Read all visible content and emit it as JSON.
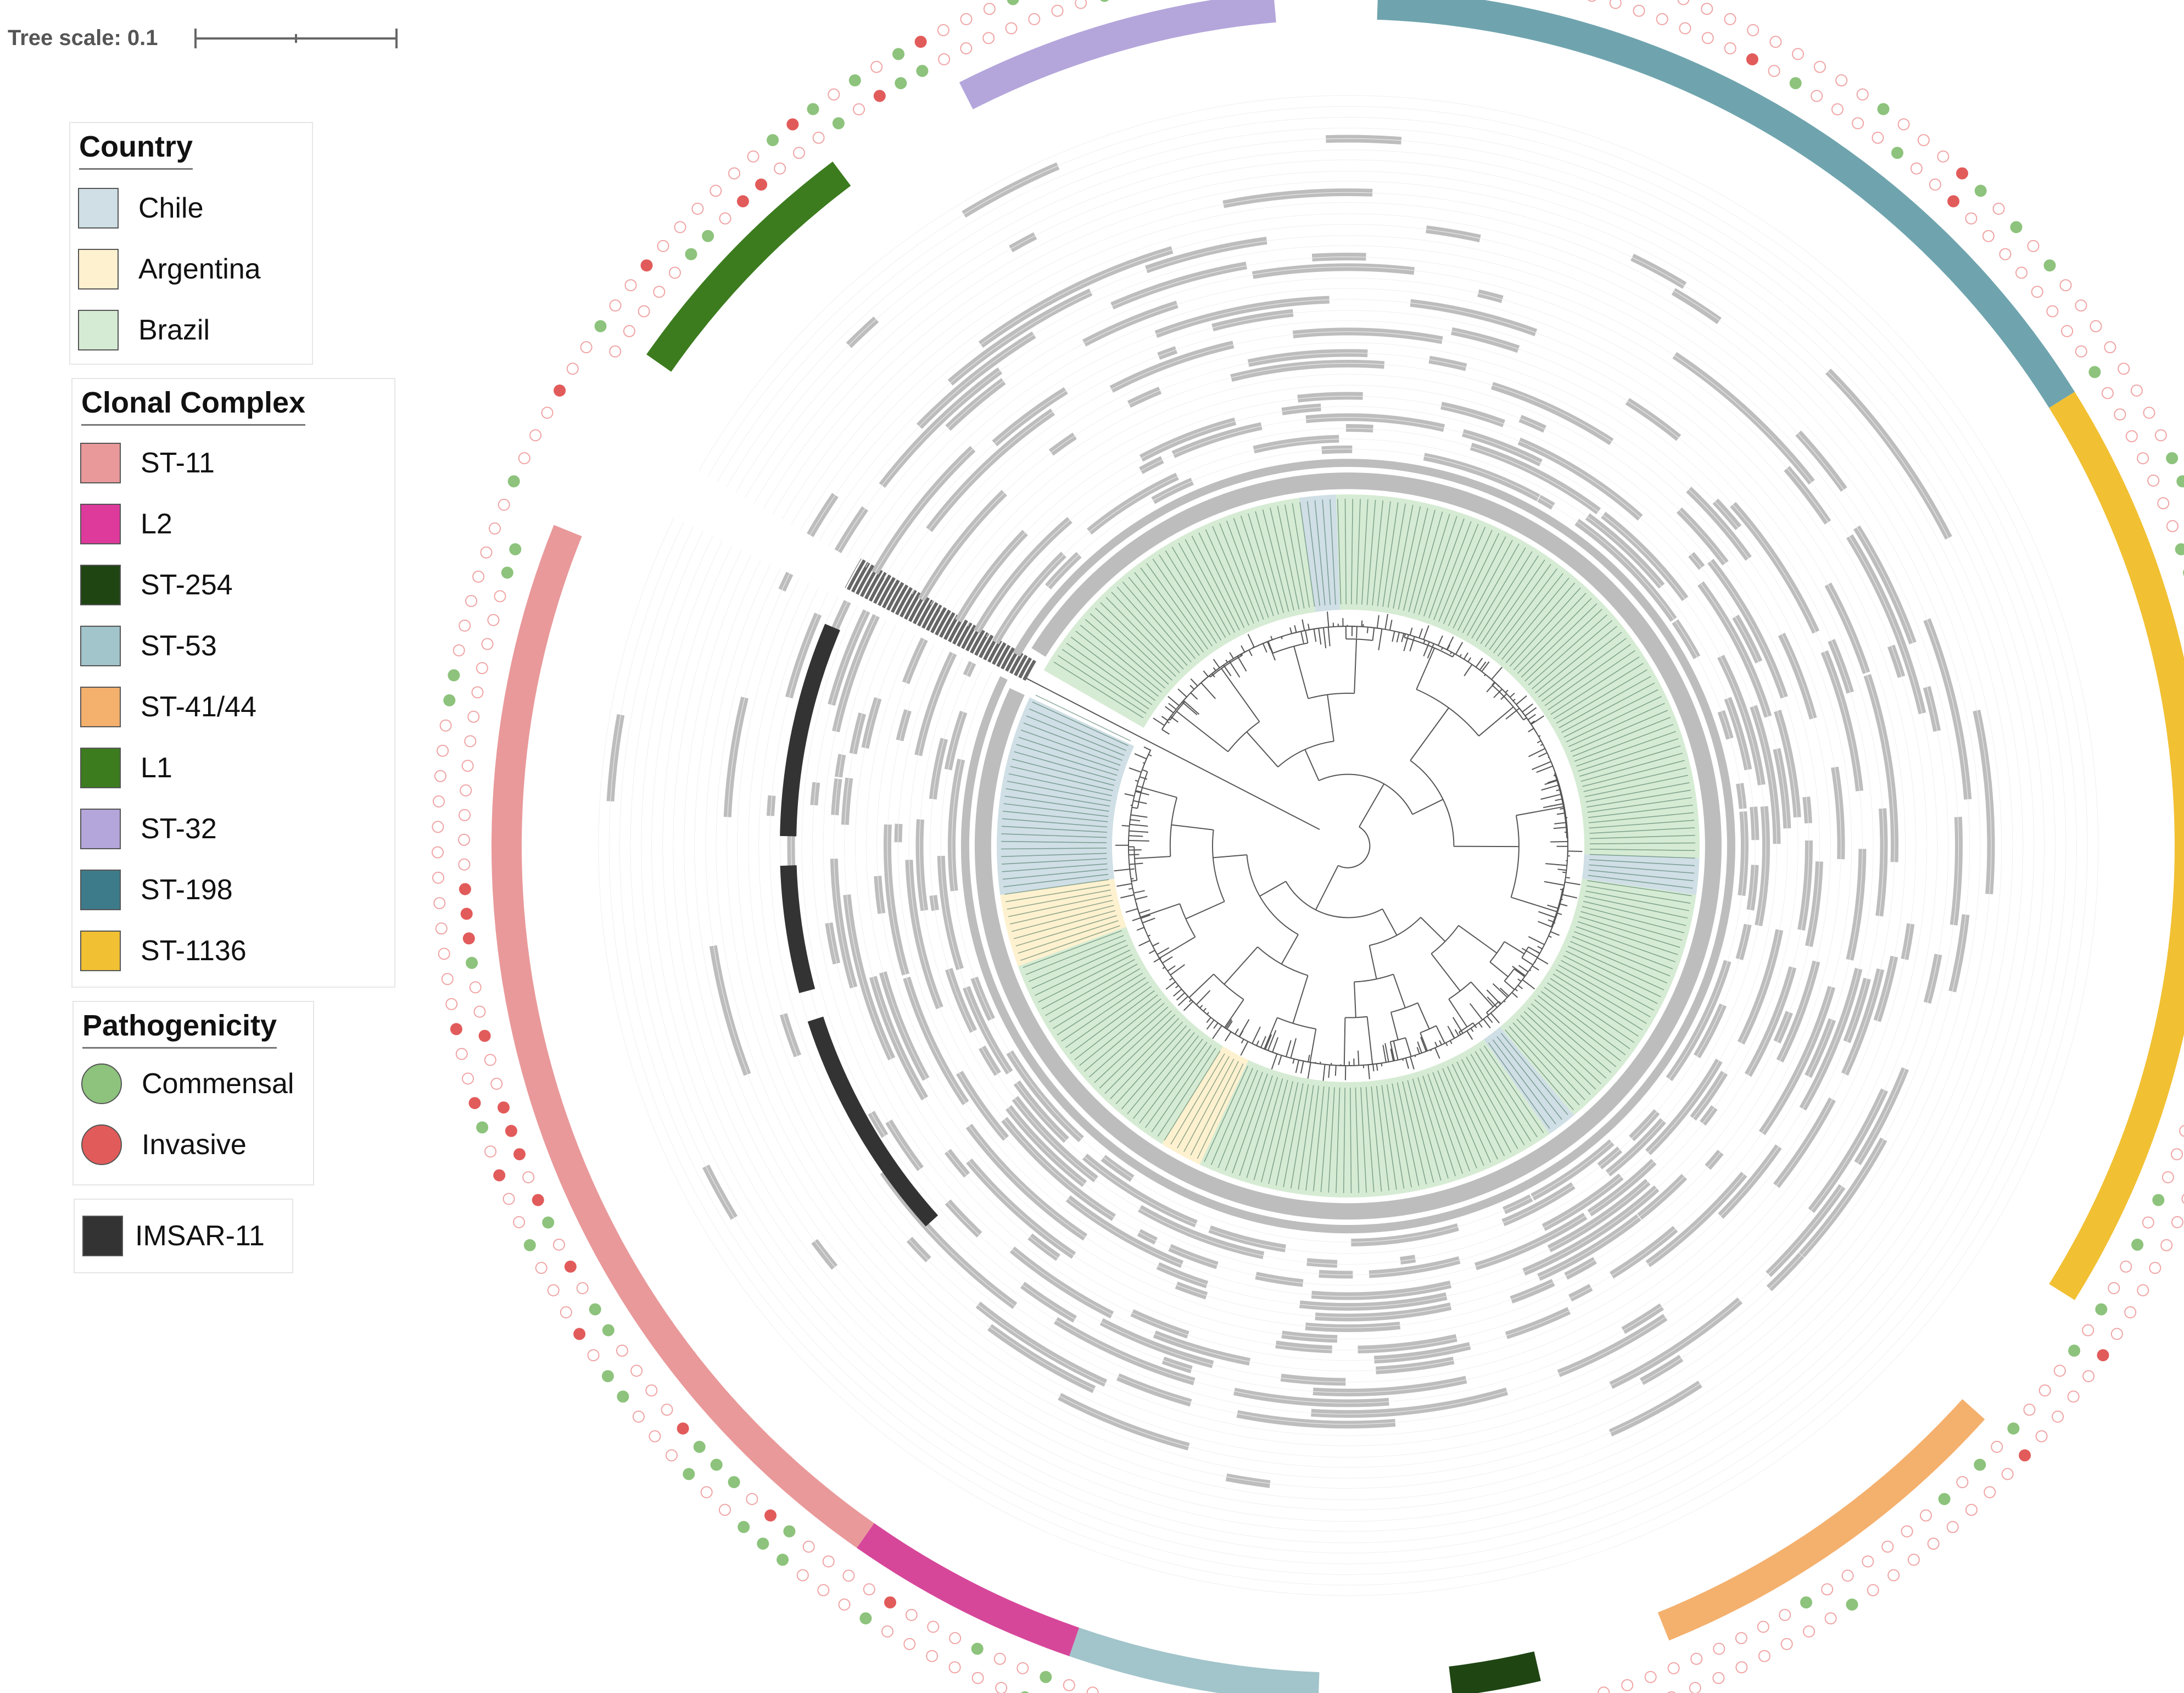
{
  "tree_scale": {
    "label": "Tree scale: 0.1"
  },
  "legends": {
    "country": {
      "title": "Country",
      "items": [
        {
          "label": "Chile",
          "color": "#cfdfe5"
        },
        {
          "label": "Argentina",
          "color": "#fdf1cf"
        },
        {
          "label": "Brazil",
          "color": "#d6ebd3"
        }
      ]
    },
    "clonal_complex": {
      "title": "Clonal Complex",
      "items": [
        {
          "label": "ST-11",
          "color": "#e9999a"
        },
        {
          "label": "L2",
          "color": "#dd3a9c"
        },
        {
          "label": "ST-254",
          "color": "#1f4513"
        },
        {
          "label": "ST-53",
          "color": "#a2c4cb"
        },
        {
          "label": "ST-41/44",
          "color": "#f4b06d"
        },
        {
          "label": "L1",
          "color": "#3c7c1f"
        },
        {
          "label": "ST-32",
          "color": "#b4a6db"
        },
        {
          "label": "ST-198",
          "color": "#3e7b8a"
        },
        {
          "label": "ST-1136",
          "color": "#f1c033"
        }
      ]
    },
    "pathogenicity": {
      "title": "Pathogenicity",
      "items": [
        {
          "label": "Commensal",
          "color": "#8dc37c"
        },
        {
          "label": "Invasive",
          "color": "#e25b5b"
        }
      ]
    },
    "imsar": {
      "label": "IMSAR-11",
      "color": "#333333"
    }
  },
  "colors": {
    "gene_presence": "#bdbdbd",
    "branch": "#555555",
    "commensal": "#8dc37c",
    "invasive": "#e25b5b",
    "open_marker": "#f0a4a4"
  },
  "clonal_ring": [
    {
      "complex": "ST-198",
      "color": "#6fa4ae",
      "from_deg": 2,
      "to_deg": 58
    },
    {
      "complex": "ST-1136",
      "color": "#f1c033",
      "from_deg": 58,
      "to_deg": 122
    },
    {
      "complex": "ST-41/44",
      "color": "#f4b06d",
      "from_deg": 132,
      "to_deg": 158
    },
    {
      "complex": "ST-254",
      "color": "#1f4513",
      "from_deg": 167,
      "to_deg": 173
    },
    {
      "complex": "ST-53",
      "color": "#a2c4cb",
      "from_deg": 182,
      "to_deg": 199
    },
    {
      "complex": "L2",
      "color": "#d6479a",
      "from_deg": 199,
      "to_deg": 215
    },
    {
      "complex": "ST-11",
      "color": "#e9999a",
      "from_deg": 215,
      "to_deg": 292
    },
    {
      "complex": "L1",
      "color": "#3c7c1f",
      "from_deg": 305,
      "to_deg": 323
    },
    {
      "complex": "ST-32",
      "color": "#b4a6db",
      "from_deg": 333,
      "to_deg": 355
    }
  ],
  "imsar_ring": [
    {
      "from_deg": 228,
      "to_deg": 252
    },
    {
      "from_deg": 255,
      "to_deg": 268
    },
    {
      "from_deg": 271,
      "to_deg": 293
    }
  ],
  "country_ring": [
    {
      "country": "Brazil",
      "color": "#d6ebd3",
      "from_deg": 300,
      "to_deg": 352
    },
    {
      "country": "Chile",
      "color": "#cfdfe5",
      "from_deg": 352,
      "to_deg": 358
    },
    {
      "country": "Brazil",
      "color": "#d6ebd3",
      "from_deg": 358,
      "to_deg": 452
    },
    {
      "country": "Chile",
      "color": "#cfdfe5",
      "from_deg": 92,
      "to_deg": 98
    },
    {
      "country": "Brazil",
      "color": "#d6ebd3",
      "from_deg": 98,
      "to_deg": 140
    },
    {
      "country": "Chile",
      "color": "#cfdfe5",
      "from_deg": 140,
      "to_deg": 145
    },
    {
      "country": "Brazil",
      "color": "#d6ebd3",
      "from_deg": 145,
      "to_deg": 205
    },
    {
      "country": "Argentina",
      "color": "#fdf1cf",
      "from_deg": 205,
      "to_deg": 212
    },
    {
      "country": "Brazil",
      "color": "#d6ebd3",
      "from_deg": 212,
      "to_deg": 250
    },
    {
      "country": "Argentina",
      "color": "#fdf1cf",
      "from_deg": 250,
      "to_deg": 262
    },
    {
      "country": "Chile",
      "color": "#cfdfe5",
      "from_deg": 262,
      "to_deg": 295
    }
  ]
}
